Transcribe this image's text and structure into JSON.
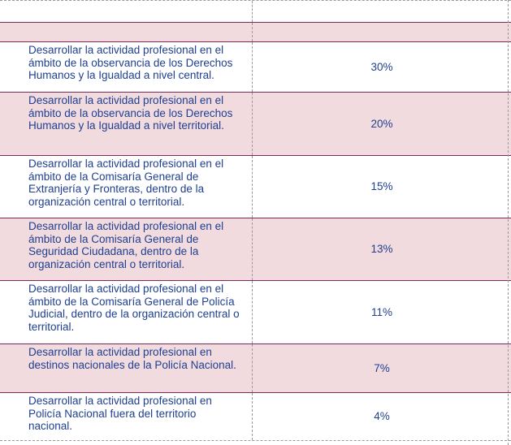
{
  "rows": [
    {
      "description": "Desarrollar la actividad profesional en el ámbito de la observancia de los Derechos Humanos y la Igualdad a nivel central.",
      "percent": "30%"
    },
    {
      "description": "Desarrollar la actividad profesional en el ámbito de la observancia de los Derechos Humanos y la Igualdad a nivel territorial.",
      "percent": "20%"
    },
    {
      "description": "Desarrollar la actividad profesional en el ámbito de la Comisaría General de Extranjería y Fronteras, dentro de la organización central o territorial.",
      "percent": "15%"
    },
    {
      "description": "Desarrollar la actividad profesional en el ámbito de la Comisaría General de Seguridad Ciudadana, dentro de la organización central o territorial.",
      "percent": "13%"
    },
    {
      "description": "Desarrollar la actividad profesional en el ámbito de la Comisaría General de Policía Judicial, dentro de la organización central o territorial.",
      "percent": "11%"
    },
    {
      "description": "Desarrollar la actividad profesional en destinos nacionales de la Policía Nacional.",
      "percent": "7%"
    },
    {
      "description": "Desarrollar la actividad profesional en Policía Nacional fuera del territorio nacional.",
      "percent": "4%"
    }
  ]
}
